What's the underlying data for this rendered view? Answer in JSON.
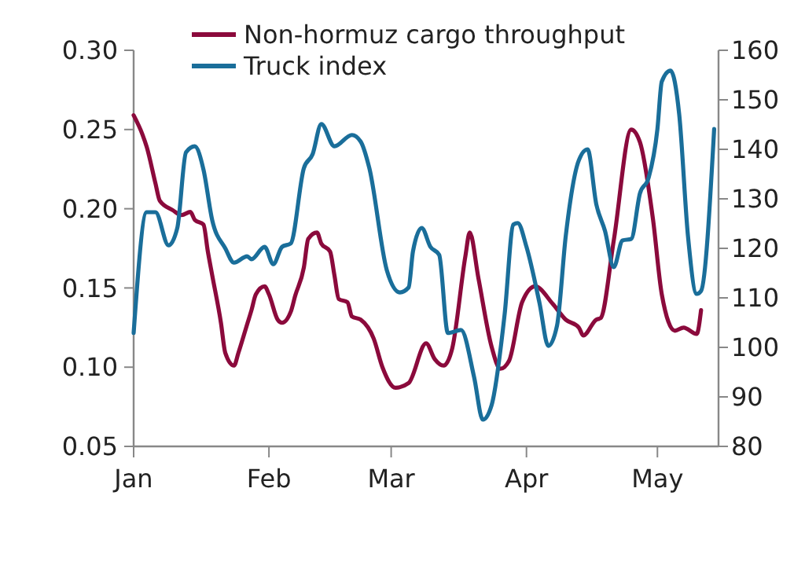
{
  "chart_data": {
    "type": "line",
    "legend": "top left",
    "line_style": "solid",
    "marker": "none",
    "grid": false,
    "xlim": [
      "--01-01",
      "--05-15"
    ],
    "xticks": [
      {
        "value": "--01-01",
        "label": "Jan"
      },
      {
        "value": "--02-01",
        "label": "Feb"
      },
      {
        "value": "--03-01",
        "label": "Mar"
      },
      {
        "value": "--04-01",
        "label": "Apr"
      },
      {
        "value": "--05-01",
        "label": "May"
      }
    ],
    "ylim": [
      0.05,
      0.3
    ],
    "yticks": [
      {
        "value": 0.05,
        "label": "0.05"
      },
      {
        "value": 0.1,
        "label": "0.10"
      },
      {
        "value": 0.15,
        "label": "0.15"
      },
      {
        "value": 0.2,
        "label": "0.20"
      },
      {
        "value": 0.25,
        "label": "0.25"
      },
      {
        "value": 0.3,
        "label": "0.30"
      }
    ],
    "y2lim": [
      80,
      160
    ],
    "y2ticks": [
      80,
      90,
      100,
      110,
      120,
      130,
      140,
      150,
      160
    ],
    "series": [
      {
        "name": "Non-hormuz cargo throughput",
        "color": "#8b0a3c",
        "x": [
          "--01-01",
          "--01-03",
          "--01-04",
          "--01-06",
          "--01-07",
          "--01-10",
          "--01-12",
          "--01-14",
          "--01-15",
          "--01-17",
          "--01-18",
          "--01-19",
          "--01-21",
          "--01-22",
          "--01-24",
          "--01-25",
          "--01-27",
          "--01-28",
          "--01-29",
          "--01-31",
          "--02-01",
          "--02-03",
          "--02-04",
          "--02-06",
          "--02-07",
          "--02-09",
          "--02-10",
          "--02-12",
          "--02-13",
          "--02-15",
          "--02-16",
          "--02-17",
          "--02-19",
          "--02-20",
          "--02-22",
          "--02-25",
          "--02-27",
          "--03-02",
          "--03-05",
          "--03-09",
          "--03-11",
          "--03-13",
          "--03-15",
          "--03-18",
          "--03-19",
          "--03-21",
          "--03-24",
          "--03-26",
          "--03-28",
          "--03-31",
          "--04-03",
          "--04-07",
          "--04-10",
          "--04-13",
          "--04-14",
          "--04-17",
          "--04-18",
          "--04-21",
          "--04-25",
          "--04-27",
          "--04-30",
          "--05-02",
          "--05-05",
          "--05-07",
          "--05-10",
          "--05-11"
        ],
        "values": [
          0.259,
          0.247,
          0.239,
          0.216,
          0.205,
          0.199,
          0.196,
          0.198,
          0.193,
          0.19,
          0.173,
          0.158,
          0.128,
          0.109,
          0.101,
          0.109,
          0.127,
          0.136,
          0.146,
          0.151,
          0.146,
          0.13,
          0.128,
          0.135,
          0.145,
          0.163,
          0.181,
          0.185,
          0.178,
          0.173,
          0.158,
          0.143,
          0.141,
          0.132,
          0.13,
          0.118,
          0.1,
          0.087,
          0.09,
          0.115,
          0.105,
          0.101,
          0.112,
          0.17,
          0.185,
          0.156,
          0.113,
          0.099,
          0.104,
          0.141,
          0.151,
          0.14,
          0.13,
          0.125,
          0.12,
          0.13,
          0.131,
          0.18,
          0.25,
          0.242,
          0.193,
          0.146,
          0.123,
          0.125,
          0.121,
          0.136
        ]
      },
      {
        "name": "Truck index",
        "color": "#1a6e9a",
        "axis": "y2",
        "x": [
          "--01-01",
          "--01-04",
          "--01-06",
          "--01-09",
          "--01-11",
          "--01-13",
          "--01-15",
          "--01-17",
          "--01-19",
          "--01-22",
          "--01-24",
          "--01-27",
          "--01-28",
          "--01-31",
          "--02-02",
          "--02-04",
          "--02-06",
          "--02-09",
          "--02-11",
          "--02-13",
          "--02-16",
          "--02-20",
          "--02-22",
          "--02-24",
          "--02-28",
          "--03-03",
          "--03-05",
          "--03-06",
          "--03-08",
          "--03-10",
          "--03-12",
          "--03-14",
          "--03-17",
          "--03-20",
          "--03-22",
          "--03-24",
          "--03-27",
          "--03-29",
          "--03-30",
          "--04-01",
          "--04-04",
          "--04-06",
          "--04-08",
          "--04-10",
          "--04-13",
          "--04-15",
          "--04-17",
          "--04-19",
          "--04-21",
          "--04-23",
          "--04-25",
          "--04-27",
          "--04-29",
          "--05-01",
          "--05-02",
          "--05-04",
          "--05-06",
          "--05-08",
          "--05-10",
          "--05-11",
          "--05-14"
        ],
        "values": [
          102.9,
          127.3,
          127.3,
          120.6,
          124.1,
          139.4,
          140.6,
          135.9,
          125.7,
          120,
          117.1,
          118.4,
          117.8,
          120.3,
          116.8,
          120.3,
          121,
          136.2,
          139,
          145.1,
          140.6,
          142.9,
          141.6,
          136.2,
          115.6,
          111.1,
          112.1,
          119.4,
          124.1,
          120.3,
          118.7,
          102.9,
          103.5,
          94,
          85.4,
          88.3,
          106.7,
          124.8,
          125.1,
          120.3,
          108.9,
          100.3,
          104.4,
          122.5,
          137.8,
          140,
          128.9,
          123.5,
          116.2,
          121.6,
          121.9,
          131.1,
          134.3,
          144.1,
          153.7,
          155.9,
          147,
          122.5,
          110.8,
          111.4,
          144.1
        ]
      }
    ]
  }
}
